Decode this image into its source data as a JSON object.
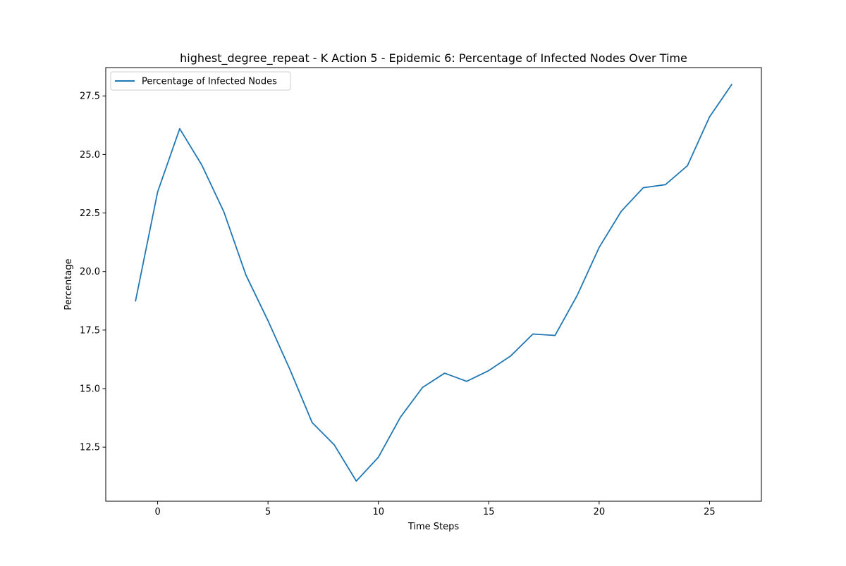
{
  "chart_data": {
    "type": "line",
    "title": "highest_degree_repeat - K Action 5 - Epidemic 6: Percentage of Infected Nodes Over Time",
    "xlabel": "Time Steps",
    "ylabel": "Percentage",
    "xlim": [
      -2.35,
      27.35
    ],
    "ylim": [
      10.19,
      28.71
    ],
    "x_ticks": [
      0,
      5,
      10,
      15,
      20,
      25
    ],
    "y_ticks": [
      12.5,
      15.0,
      17.5,
      20.0,
      22.5,
      25.0,
      27.5
    ],
    "x_tick_labels": [
      "0",
      "5",
      "10",
      "15",
      "20",
      "25"
    ],
    "y_tick_labels": [
      "12.5",
      "15.0",
      "17.5",
      "20.0",
      "22.5",
      "25.0",
      "27.5"
    ],
    "grid": false,
    "legend_position": "top-left",
    "series": [
      {
        "name": "Percentage of Infected Nodes",
        "color": "#1f77b4",
        "x": [
          -1,
          0,
          1,
          2,
          3,
          4,
          5,
          6,
          7,
          8,
          9,
          10,
          11,
          12,
          13,
          14,
          15,
          16,
          17,
          18,
          19,
          20,
          21,
          22,
          23,
          24,
          25,
          26
        ],
        "y": [
          18.75,
          23.4,
          26.1,
          24.55,
          22.55,
          19.85,
          17.9,
          15.8,
          13.55,
          12.6,
          11.05,
          12.07,
          13.78,
          15.05,
          15.66,
          15.31,
          15.77,
          16.4,
          17.33,
          17.27,
          18.97,
          21.03,
          22.57,
          23.58,
          23.71,
          24.52,
          26.6,
          27.98
        ]
      }
    ]
  }
}
